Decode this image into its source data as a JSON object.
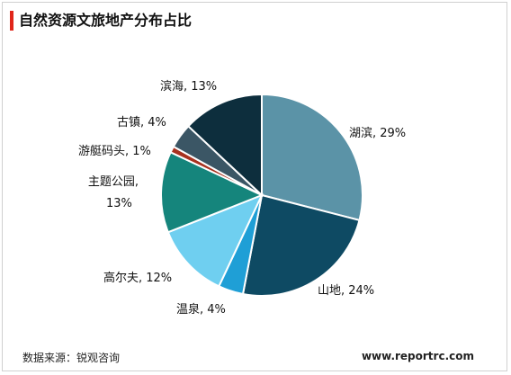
{
  "header": {
    "title": "自然资源文旅地产分布占比",
    "accent_color": "#e0261a"
  },
  "footer": {
    "source": "数据来源：锐观咨询",
    "website": "www.reportrc.com"
  },
  "chart_data": {
    "type": "pie",
    "title": "自然资源文旅地产分布占比",
    "start_angle_deg": 0,
    "direction": "clockwise",
    "slices": [
      {
        "label": "湖滨",
        "value": 29,
        "text": "湖滨, 29%",
        "color": "#5b93a7"
      },
      {
        "label": "山地",
        "value": 24,
        "text": "山地, 24%",
        "color": "#0e4a63"
      },
      {
        "label": "温泉",
        "value": 4,
        "text": "温泉, 4%",
        "color": "#1f9fd6"
      },
      {
        "label": "高尔夫",
        "value": 12,
        "text": "高尔夫, 12%",
        "color": "#6fcff0"
      },
      {
        "label": "主题公园",
        "value": 13,
        "text_lines": [
          "主题公园,",
          "13%"
        ],
        "color": "#15857c"
      },
      {
        "label": "游艇码头",
        "value": 1,
        "text": "游艇码头, 1%",
        "color": "#a8321f"
      },
      {
        "label": "古镇",
        "value": 4,
        "text": "古镇, 4%",
        "color": "#3b5665"
      },
      {
        "label": "滨海",
        "value": 13,
        "text": "滨海, 13%",
        "color": "#0d2e3d"
      }
    ]
  }
}
